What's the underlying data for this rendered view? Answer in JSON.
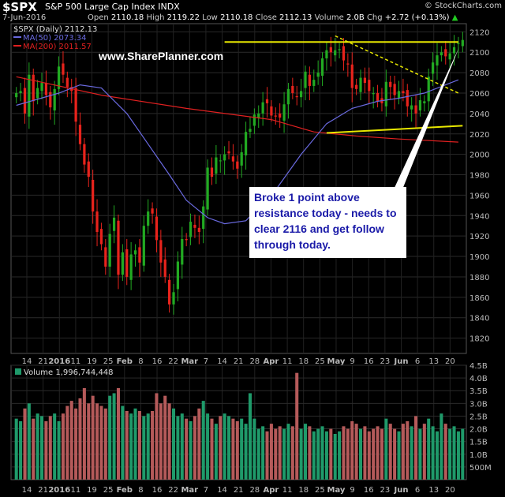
{
  "header": {
    "symbol": "$SPX",
    "description": "S&P 500 Large Cap Index INDX",
    "logo": "© StockCharts.com",
    "date": "7-Jun-2016",
    "open_label": "Open",
    "open": "2110.18",
    "high_label": "High",
    "high": "2119.22",
    "low_label": "Low",
    "low": "2110.18",
    "close_label": "Close",
    "close": "2112.13",
    "volume_label": "Volume",
    "volume": "2.0B",
    "chg_label": "Chg",
    "chg": "+2.72 (+0.13%)",
    "chg_arrow": "▲"
  },
  "legend": {
    "price": "$SPX (Daily) 2112.13",
    "ma50": "MA(50) 2073.34",
    "ma200": "MA(200) 2011.57",
    "volume": "Volume 1,996,744,448"
  },
  "watermark": "www.SharePlanner.com",
  "callout": "Broke 1 point above resistance today - needs to clear 2116 and get follow through today.",
  "colors": {
    "up": "#22aa22",
    "down": "#e8231c",
    "ma50": "#6a6ae0",
    "ma200": "#e02020",
    "trend": "#e8e800",
    "callout_text": "#1a1aa8",
    "vol_up": "#1f9a6a",
    "vol_down": "#b55a5a"
  },
  "chart_data": [
    {
      "type": "candlestick",
      "title": "$SPX (Daily)",
      "ylim": [
        1805,
        2128
      ],
      "y_ticks": [
        1820,
        1840,
        1860,
        1880,
        1900,
        1920,
        1940,
        1960,
        1980,
        2000,
        2020,
        2040,
        2060,
        2080,
        2100,
        2120
      ],
      "x_tick_labels": [
        "14",
        "21",
        "2016",
        "11",
        "19",
        "25",
        "Feb",
        "8",
        "16",
        "22",
        "Mar",
        "7",
        "14",
        "21",
        "28",
        "Apr",
        "11",
        "18",
        "25",
        "May",
        "9",
        "16",
        "23",
        "Jun",
        "6",
        "13",
        "20"
      ],
      "close": [
        2060,
        2062,
        2040,
        2078,
        2052,
        2065,
        2070,
        2058,
        2046,
        2064,
        2086,
        2078,
        2066,
        2062,
        2032,
        2010,
        1990,
        1978,
        1944,
        1924,
        1912,
        1890,
        1922,
        1938,
        1882,
        1904,
        1880,
        1902,
        1906,
        1894,
        1930,
        1944,
        1942,
        1916,
        1894,
        1880,
        1853,
        1865,
        1895,
        1917,
        1916,
        1934,
        1928,
        1924,
        1949,
        1987,
        1978,
        1997,
        1994,
        2000,
        2001,
        1993,
        1986,
        2002,
        2022,
        2025,
        2039,
        2040,
        2051,
        2050,
        2038,
        2037,
        2036,
        2049,
        2064,
        2060,
        2056,
        2062,
        2081,
        2067,
        2073,
        2080,
        2094,
        2102,
        2100,
        2102,
        2103,
        2092,
        2088,
        2065,
        2064,
        2075,
        2070,
        2062,
        2060,
        2052,
        2050,
        2071,
        2066,
        2058,
        2062,
        2060,
        2047,
        2048,
        2040,
        2053,
        2052,
        2076,
        2090,
        2097,
        2100,
        2096,
        2099,
        2105,
        2109,
        2112
      ],
      "lines": {
        "MA(50)": [
          [
            2048,
            1
          ],
          [
            2060,
            11
          ],
          [
            2068,
            16
          ],
          [
            2065,
            21
          ],
          [
            2040,
            27
          ],
          [
            2010,
            32
          ],
          [
            1980,
            37
          ],
          [
            1955,
            41
          ],
          [
            1938,
            46
          ],
          [
            1932,
            50
          ],
          [
            1935,
            55
          ],
          [
            1965,
            62
          ],
          [
            2000,
            68
          ],
          [
            2030,
            74
          ],
          [
            2045,
            80
          ],
          [
            2052,
            86
          ],
          [
            2055,
            91
          ],
          [
            2060,
            97
          ],
          [
            2073,
            105
          ]
        ],
        "MA(200)": [
          [
            2076,
            1
          ],
          [
            2058,
            21
          ],
          [
            2045,
            41
          ],
          [
            2034,
            61
          ],
          [
            2022,
            71
          ],
          [
            2018,
            81
          ],
          [
            2015,
            91
          ],
          [
            2012,
            105
          ]
        ],
        "resistance": [
          [
            2110,
            50
          ],
          [
            2110,
            105
          ]
        ],
        "support": [
          [
            2021,
            74
          ],
          [
            2028,
            106
          ]
        ],
        "downtrend": [
          [
            2116,
            76
          ],
          [
            2060,
            105
          ]
        ]
      },
      "annotation": "Broke 1 point above resistance today - needs to clear 2116 and get follow through today."
    },
    {
      "type": "bar",
      "title": "Volume",
      "ylim": [
        0,
        4.5
      ],
      "y_tick_labels": [
        "500M",
        "1.0B",
        "1.5B",
        "2.0B",
        "2.5B",
        "3.0B",
        "3.5B",
        "4.0B",
        "4.5B"
      ],
      "y_ticks": [
        0.5,
        1.0,
        1.5,
        2.0,
        2.5,
        3.0,
        3.5,
        4.0,
        4.5
      ],
      "values_billions": [
        2.4,
        2.3,
        2.8,
        3.0,
        2.4,
        2.6,
        2.5,
        2.3,
        2.5,
        2.6,
        2.3,
        2.6,
        2.9,
        3.1,
        2.8,
        3.2,
        3.6,
        3.0,
        3.3,
        3.0,
        2.9,
        2.8,
        3.3,
        3.4,
        3.6,
        2.9,
        2.7,
        2.6,
        2.8,
        2.7,
        2.5,
        2.6,
        2.7,
        3.4,
        3.0,
        3.3,
        3.0,
        2.8,
        2.5,
        2.6,
        2.4,
        2.3,
        2.5,
        2.8,
        3.1,
        2.6,
        2.4,
        2.2,
        2.5,
        2.6,
        2.5,
        2.4,
        2.3,
        2.4,
        2.2,
        3.4,
        2.4,
        2.0,
        2.1,
        1.9,
        2.2,
        2.0,
        2.1,
        2.0,
        2.2,
        2.1,
        4.2,
        2.0,
        2.2,
        2.1,
        1.9,
        2.0,
        2.1,
        1.9,
        2.0,
        1.8,
        1.9,
        2.1,
        2.0,
        2.3,
        2.2,
        2.0,
        2.1,
        1.9,
        2.0,
        2.1,
        2.0,
        2.4,
        2.2,
        2.0,
        1.9,
        2.2,
        2.3,
        2.1,
        2.5,
        2.0,
        2.2,
        2.4,
        2.1,
        1.9,
        2.6,
        2.2,
        2.0,
        2.1,
        1.9,
        2.0
      ]
    }
  ]
}
